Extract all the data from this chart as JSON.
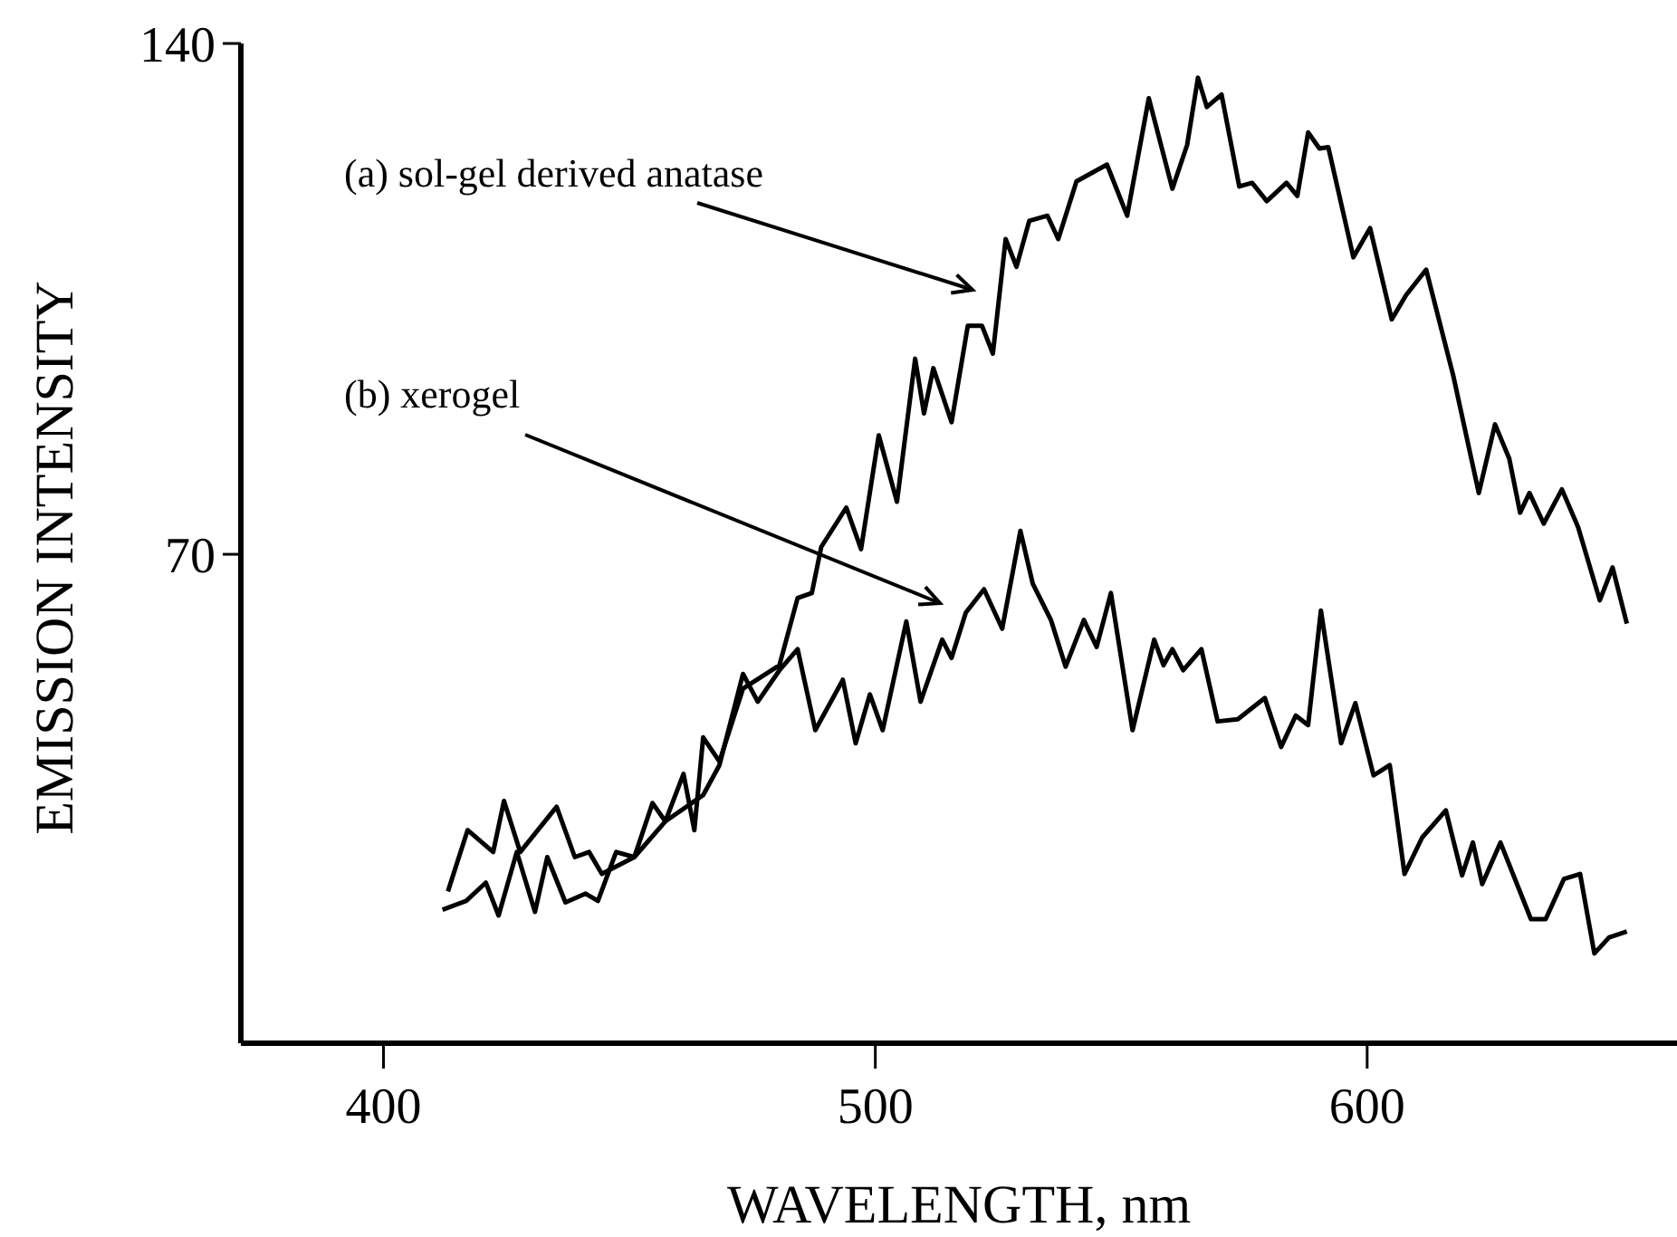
{
  "chart_data": {
    "type": "line",
    "xlabel": "WAVELENGTH, nm",
    "ylabel": "EMISSION INTENSITY",
    "xlim": [
      371,
      663
    ],
    "ylim": [
      3,
      140
    ],
    "xticks": [
      400,
      500,
      600
    ],
    "yticks": [
      70,
      140
    ],
    "grid": false,
    "annotations": [
      "(a) sol-gel derived anatase",
      "(b) xerogel"
    ],
    "series": [
      {
        "color": "#000000",
        "x": [
          412,
          416.8,
          420.8,
          423.4,
          427.1,
          430.8,
          433.3,
          437,
          441.1,
          443.6,
          447.3,
          451,
          454.7,
          457.3,
          461,
          463.2,
          465,
          468.3,
          473.1,
          480.5,
          484.2,
          487.1,
          489,
          494.1,
          497.1,
          500.7,
          504.4,
          508.1,
          509.9,
          511.8,
          515.5,
          518.8,
          521.7,
          523.9,
          526.5,
          528.7,
          531.3,
          535,
          537.2,
          540.9,
          547.1,
          551.2,
          555.6,
          560.4,
          563.4,
          565.6,
          567.4,
          570.4,
          574,
          576.6,
          579.6,
          583.6,
          585.8,
          588,
          590.3,
          592.1,
          597.2,
          600.6,
          605,
          607.9,
          612,
          617.5,
          622.7,
          626,
          628.9,
          631.1,
          633,
          635.9,
          639.6,
          642.9,
          647.3,
          649.9,
          652.8
        ],
        "values": [
          21.3,
          22.5,
          25,
          20.5,
          29.2,
          21,
          28.5,
          22.3,
          23.5,
          22.5,
          29.2,
          28.5,
          35.9,
          33.4,
          39.9,
          32.2,
          44.9,
          41.6,
          51.6,
          54.8,
          64,
          64.7,
          71,
          76.4,
          70.7,
          86.3,
          77.2,
          96.8,
          89.3,
          95.5,
          88.1,
          101.3,
          101.3,
          97.5,
          113.2,
          109.4,
          115.7,
          116.4,
          113.2,
          121.1,
          123.4,
          116.4,
          132.5,
          120.1,
          126.1,
          135.3,
          131.3,
          133,
          120.4,
          120.9,
          118.4,
          120.9,
          119.1,
          127.8,
          125.6,
          125.8,
          110.7,
          114.7,
          102.2,
          105.5,
          109,
          94.5,
          78.4,
          87.8,
          83.1,
          75.7,
          78.4,
          74.2,
          78.9,
          73.7,
          63.7,
          68.2,
          60.5
        ]
      },
      {
        "color": "#000000",
        "x": [
          413.1,
          417.1,
          422.3,
          424.5,
          427.8,
          435.2,
          438.9,
          441.8,
          444.4,
          451,
          457.3,
          465,
          468.3,
          473.1,
          476.1,
          480.5,
          484.2,
          487.8,
          493.4,
          496,
          498.9,
          501.5,
          506.3,
          509.2,
          513.6,
          515.5,
          518.4,
          522.1,
          525.8,
          529.5,
          532,
          535.7,
          538.7,
          542.4,
          545,
          547.9,
          552.3,
          556.7,
          558.6,
          560.4,
          562.6,
          566.3,
          569.6,
          573.7,
          579.2,
          582.5,
          585.5,
          588,
          590.6,
          594.7,
          597.6,
          601.3,
          604.6,
          607.6,
          611.2,
          616,
          619.3,
          621.5,
          623.4,
          627.1,
          633.3,
          636.3,
          640,
          643.3,
          646.2,
          649.2,
          652.8
        ],
        "values": [
          23.8,
          32.2,
          29.2,
          36.2,
          29.2,
          35.4,
          28.5,
          29.2,
          26.2,
          28.5,
          33.4,
          37,
          41.1,
          53.6,
          49.8,
          54.1,
          57,
          45.9,
          52.8,
          44.1,
          50.8,
          45.9,
          60.8,
          49.8,
          58.3,
          55.8,
          62,
          65.2,
          59.8,
          73.2,
          66,
          61,
          54.6,
          61,
          57.3,
          64.7,
          45.9,
          58.3,
          54.8,
          57,
          54.1,
          57,
          47.1,
          47.4,
          50.3,
          43.6,
          47.9,
          46.6,
          62.3,
          44.1,
          49.6,
          39.7,
          41.1,
          26.2,
          31.2,
          34.9,
          26,
          30.5,
          24.8,
          30.5,
          20,
          20,
          25.5,
          26.2,
          15.3,
          17.5,
          18.3
        ]
      }
    ]
  }
}
